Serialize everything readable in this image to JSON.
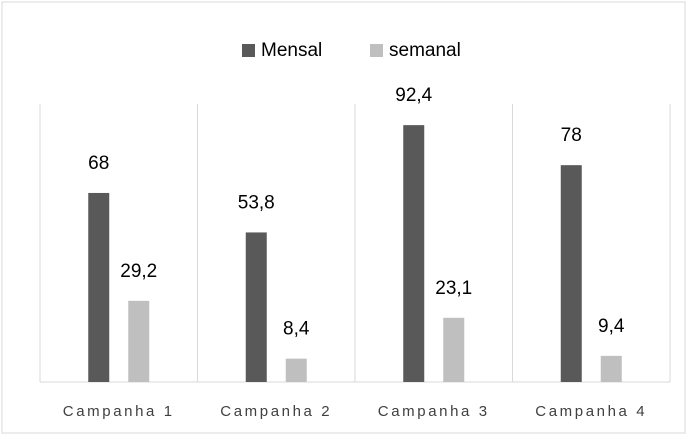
{
  "chart_data": {
    "type": "bar",
    "categories": [
      "Campanha 1",
      "Campanha 2",
      "Campanha 3",
      "Campanha 4"
    ],
    "series": [
      {
        "name": "Mensal",
        "color": "#595959",
        "values": [
          68,
          53.8,
          92.4,
          78
        ],
        "value_labels": [
          "68",
          "53,8",
          "92,4",
          "78"
        ]
      },
      {
        "name": "semanal",
        "color": "#bfbfbf",
        "values": [
          29.2,
          8.4,
          23.1,
          9.4
        ],
        "value_labels": [
          "29,2",
          "8,4",
          "23,1",
          "9,4"
        ]
      }
    ],
    "ylim": [
      0,
      100
    ],
    "legend": "top",
    "grid": "vertical-category"
  }
}
